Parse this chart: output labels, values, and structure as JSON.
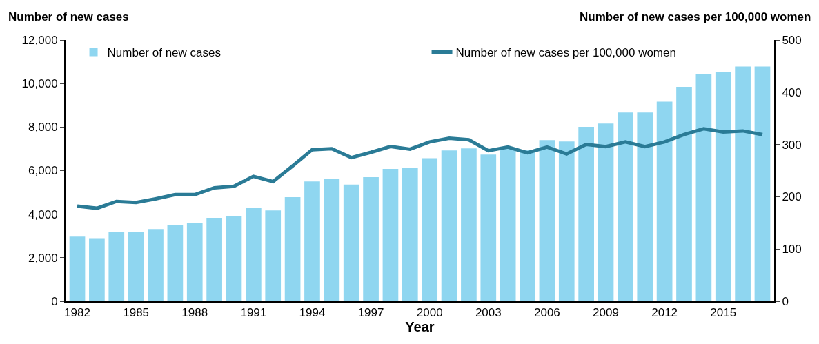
{
  "chart_data": {
    "type": "bar",
    "categories": [
      "1982",
      null,
      null,
      "1985",
      null,
      null,
      "1988",
      null,
      null,
      "1991",
      null,
      null,
      "1994",
      null,
      null,
      "1997",
      null,
      null,
      "2000",
      null,
      null,
      "2003",
      null,
      null,
      "2006",
      null,
      null,
      "2009",
      null,
      null,
      "2012",
      null,
      null,
      "2015",
      null,
      null
    ],
    "series": [
      {
        "name": "Number of new cases",
        "color": "#8fd6f0",
        "values": [
          2970,
          2900,
          3170,
          3190,
          3320,
          3510,
          3580,
          3830,
          3920,
          4300,
          4170,
          4780,
          5500,
          5610,
          5360,
          5700,
          6080,
          6120,
          6570,
          6930,
          7020,
          6740,
          7000,
          6940,
          7400,
          7340,
          8010,
          8160,
          8670,
          8670,
          9170,
          9850,
          10440,
          10530,
          10780,
          10780
        ]
      },
      {
        "name": "Number of new cases per 100,000 women",
        "type": "line",
        "axis": "y2",
        "color": "#2a7b96",
        "values": [
          182,
          178,
          191,
          189,
          196,
          204,
          204,
          217,
          220,
          239,
          229,
          259,
          290,
          292,
          275,
          285,
          296,
          291,
          305,
          312,
          309,
          288,
          295,
          284,
          295,
          282,
          300,
          296,
          305,
          296,
          305,
          319,
          330,
          324,
          326,
          319
        ]
      }
    ],
    "xlabel": "Year",
    "ylabel": "Number of new cases",
    "y2label": "Number of new cases per 100,000 women",
    "ylim": [
      0,
      12000
    ],
    "yticks": [
      0,
      {
        "value": 2000,
        "label": "2,000"
      },
      {
        "value": 4000,
        "label": "4,000"
      },
      {
        "value": 6000,
        "label": "6,000"
      },
      {
        "value": 8000,
        "label": "8,000"
      },
      {
        "value": 10000,
        "label": "10,000"
      },
      {
        "value": 12000,
        "label": "12,000"
      }
    ],
    "y2lim": [
      0,
      500
    ],
    "y2ticks": [
      0,
      100,
      200,
      300,
      400,
      500
    ],
    "legend": "top",
    "marker": "none",
    "line_style": "solid"
  }
}
